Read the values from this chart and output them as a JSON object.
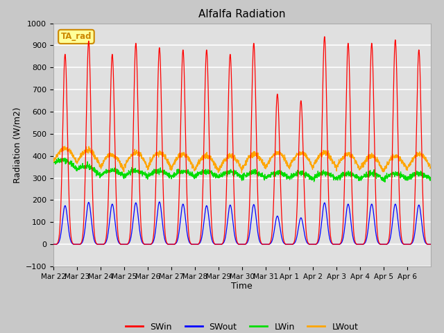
{
  "title": "Alfalfa Radiation",
  "xlabel": "Time",
  "ylabel": "Radiation (W/m2)",
  "ylim": [
    -100,
    1000
  ],
  "fig_bg_color": "#c8c8c8",
  "plot_bg_color": "#e0e0e0",
  "grid_color": "#ffffff",
  "colors": {
    "SWin": "#ff0000",
    "SWout": "#0000ff",
    "LWin": "#00dd00",
    "LWout": "#ffa500"
  },
  "annotation_box": "TA_rad",
  "annotation_color": "#cc8800",
  "annotation_bg": "#ffff99",
  "n_days": 16,
  "n_points_per_day": 144,
  "SWin_peaks": [
    860,
    920,
    860,
    910,
    890,
    880,
    880,
    860,
    910,
    680,
    650,
    940,
    910,
    910,
    925,
    880
  ],
  "SWout_peaks": [
    175,
    190,
    182,
    188,
    192,
    182,
    175,
    178,
    180,
    128,
    120,
    188,
    182,
    182,
    182,
    178
  ],
  "LWin_base": 275,
  "LWin_amplitude": 50,
  "LWout_base": 340,
  "LWout_amplitude": 65,
  "tick_dates": [
    "Mar 22",
    "Mar 23",
    "Mar 24",
    "Mar 25",
    "Mar 26",
    "Mar 27",
    "Mar 28",
    "Mar 29",
    "Mar 30",
    "Mar 31",
    "Apr 1",
    "Apr 2",
    "Apr 3",
    "Apr 4",
    "Apr 5",
    "Apr 6"
  ]
}
